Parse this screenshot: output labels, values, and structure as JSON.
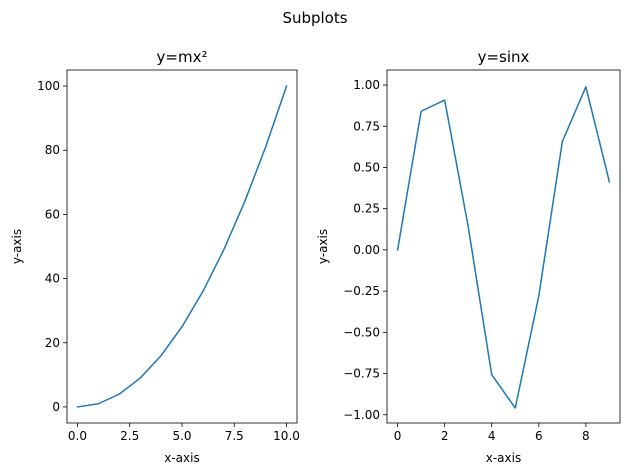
{
  "figure": {
    "suptitle": "Subplots"
  },
  "chart_data": [
    {
      "type": "line",
      "title": "y=mx²",
      "xlabel": "x-axis",
      "ylabel": "y-axis",
      "xlim": [
        -0.5,
        10.5
      ],
      "ylim": [
        -5,
        105
      ],
      "xticks": [
        0,
        2.5,
        5,
        7.5,
        10
      ],
      "xtick_labels": [
        "0.0",
        "2.5",
        "5.0",
        "7.5",
        "10.0"
      ],
      "yticks": [
        0,
        20,
        40,
        60,
        80,
        100
      ],
      "ytick_labels": [
        "0",
        "20",
        "40",
        "60",
        "80",
        "100"
      ],
      "grid": false,
      "series": [
        {
          "color": "#1f77b4",
          "x": [
            0,
            1,
            2,
            3,
            4,
            5,
            6,
            7,
            8,
            9,
            10
          ],
          "y": [
            0,
            1,
            4,
            9,
            16,
            25,
            36,
            49,
            64,
            81,
            100
          ]
        }
      ]
    },
    {
      "type": "line",
      "title": "y=sinx",
      "xlabel": "x-axis",
      "ylabel": "y-axis",
      "xlim": [
        -0.45,
        9.45
      ],
      "ylim": [
        -1.0499,
        1.0912
      ],
      "xticks": [
        0,
        2,
        4,
        6,
        8
      ],
      "xtick_labels": [
        "0",
        "2",
        "4",
        "6",
        "8"
      ],
      "yticks": [
        -1.0,
        -0.75,
        -0.5,
        -0.25,
        0.0,
        0.25,
        0.5,
        0.75,
        1.0
      ],
      "ytick_labels": [
        "−1.00",
        "−0.75",
        "−0.50",
        "−0.25",
        "0.00",
        "0.25",
        "0.50",
        "0.75",
        "1.00"
      ],
      "grid": false,
      "series": [
        {
          "color": "#1f77b4",
          "x": [
            0,
            1,
            2,
            3,
            4,
            5,
            6,
            7,
            8,
            9
          ],
          "y": [
            0,
            0.841,
            0.909,
            0.141,
            -0.757,
            -0.959,
            -0.279,
            0.657,
            0.989,
            0.412
          ]
        }
      ]
    }
  ]
}
